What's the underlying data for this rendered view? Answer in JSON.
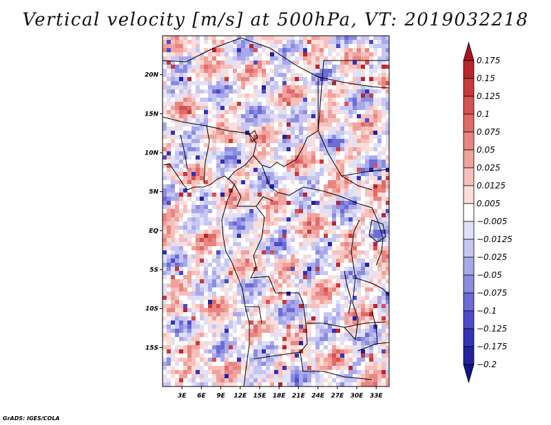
{
  "title": "Vertical velocity [m/s] at 500hPa, VT: 2019032218",
  "credit": "GrADS: IGES/COLA",
  "chart_data": {
    "type": "heatmap",
    "title": "Vertical velocity [m/s] at 500hPa, VT: 2019032218",
    "variable": "Vertical velocity",
    "units": "m/s",
    "level": "500hPa",
    "valid_time": "2019032218",
    "xlim": [
      0,
      35
    ],
    "ylim": [
      -20,
      25
    ],
    "x_ticks": [
      3,
      6,
      9,
      12,
      15,
      18,
      21,
      24,
      27,
      30,
      33
    ],
    "x_tick_labels": [
      "3E",
      "6E",
      "9E",
      "12E",
      "15E",
      "18E",
      "21E",
      "24E",
      "27E",
      "30E",
      "33E"
    ],
    "y_ticks": [
      20,
      15,
      10,
      5,
      0,
      -5,
      -10,
      -15
    ],
    "y_tick_labels": [
      "20N",
      "15N",
      "10N",
      "5N",
      "EQ",
      "5S",
      "10S",
      "15S"
    ],
    "colorbar": {
      "levels": [
        "0.175",
        "0.15",
        "0.125",
        "0.1",
        "0.075",
        "0.05",
        "0.025",
        "0.0125",
        "0.005",
        "−0.005",
        "−0.0125",
        "−0.025",
        "−0.05",
        "−0.075",
        "−0.1",
        "−0.125",
        "−0.175",
        "−0.2"
      ],
      "colors": [
        "#a8141c",
        "#b9262c",
        "#c83a3a",
        "#d65151",
        "#e06a68",
        "#e98582",
        "#f1a29d",
        "#f7c0bc",
        "#fbdedb",
        "#ffffff",
        "#e0e0f8",
        "#c6c6f2",
        "#a9a9ea",
        "#8c8ce0",
        "#6c6cd6",
        "#4c4cca",
        "#3333b8",
        "#2222a0",
        "#141488"
      ]
    }
  }
}
